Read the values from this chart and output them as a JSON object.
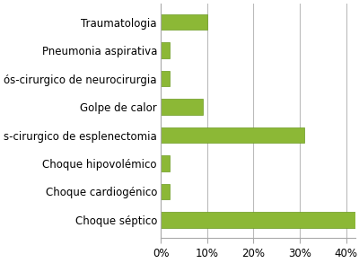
{
  "categories": [
    "Choque séptico",
    "Choque cardiogénico",
    "Choque hipovolémico",
    "s-cirurgico de esplenectomia",
    "Golpe de calor",
    "ós-cirurgico de neurocirurgia",
    "Pneumonia aspirativa",
    "Traumatologia"
  ],
  "values": [
    42,
    2,
    2,
    31,
    9,
    2,
    2,
    10
  ],
  "bar_color": "#8CB836",
  "bar_edge_color": "#6A9A1F",
  "xlim": [
    0,
    42
  ],
  "xticks": [
    0,
    10,
    20,
    30,
    40
  ],
  "xtick_labels": [
    "0%",
    "10%",
    "20%",
    "30%",
    "40%"
  ],
  "background_color": "#ffffff",
  "grid_color": "#bbbbbb",
  "spine_color": "#aaaaaa",
  "fontsize_labels": 8.5,
  "fontsize_ticks": 8.5,
  "bar_height": 0.55,
  "figsize": [
    4.0,
    2.93
  ],
  "dpi": 100
}
